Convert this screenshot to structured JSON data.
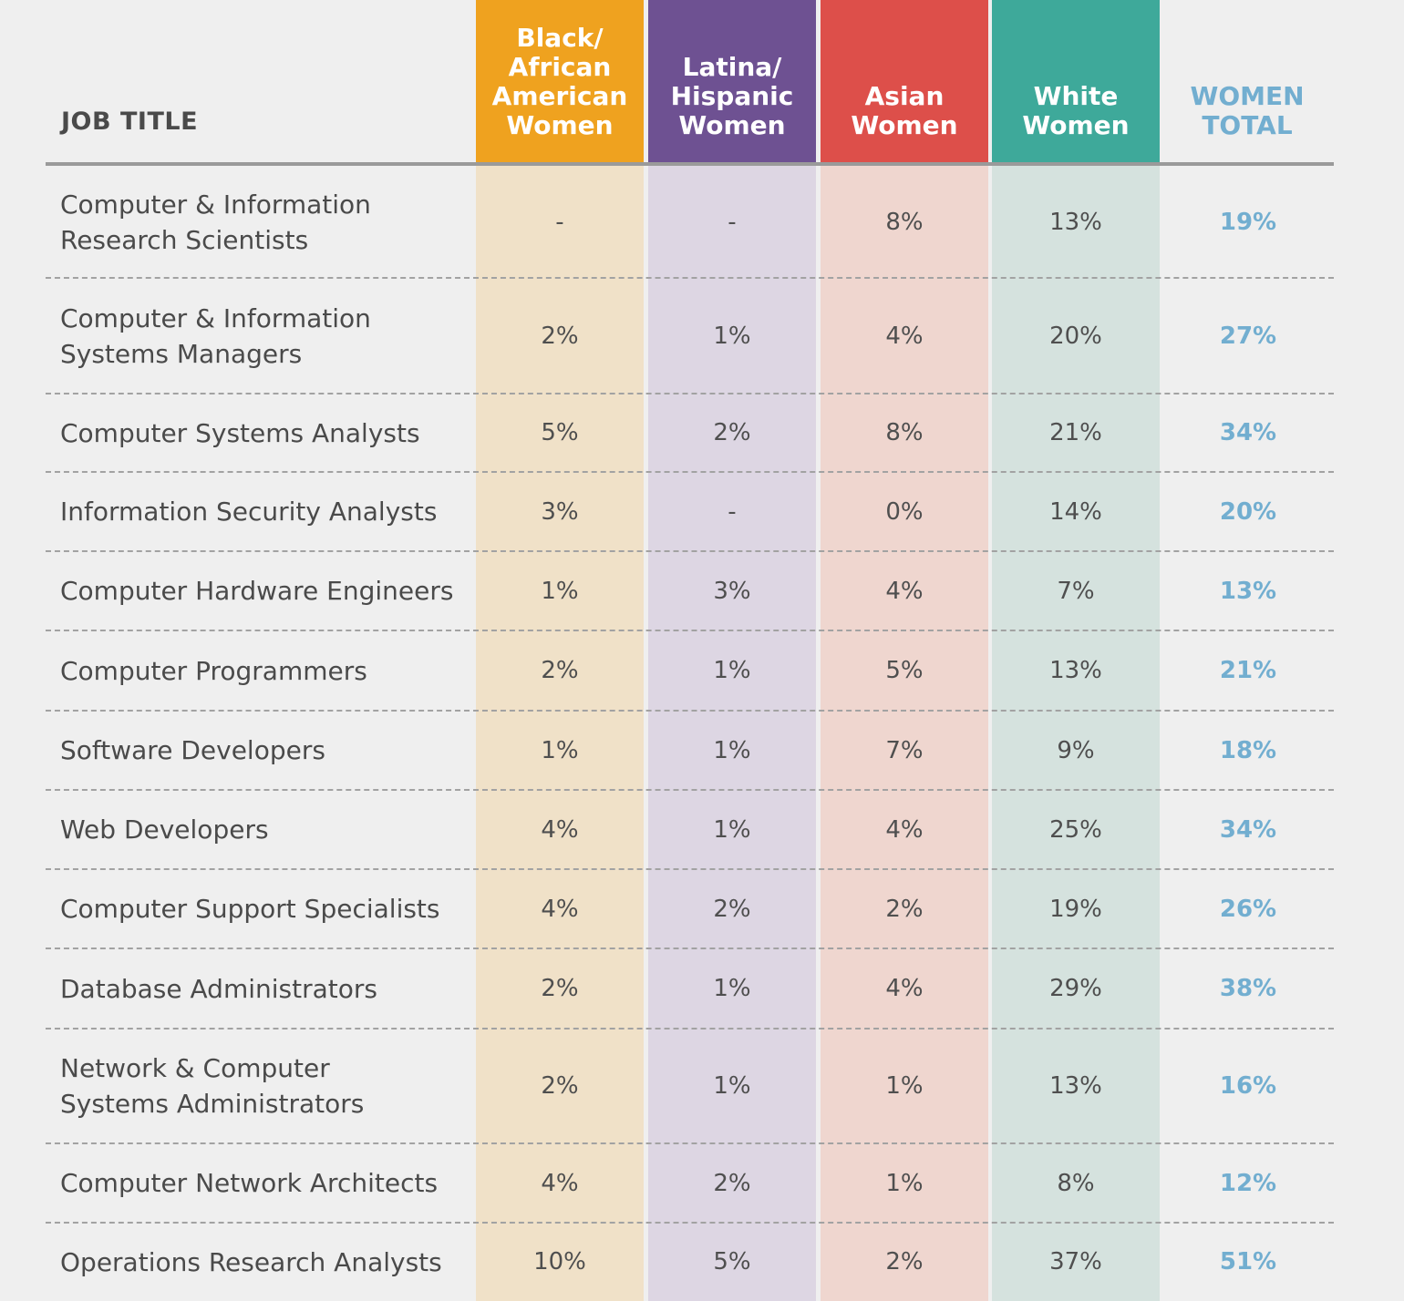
{
  "chart_data": {
    "type": "table",
    "header_label": "JOB TITLE",
    "columns": [
      {
        "key": "black",
        "lines": [
          "Black/",
          "African",
          "American",
          "Women"
        ],
        "color": "#efa21f",
        "tint": "#f0e1c8"
      },
      {
        "key": "latina",
        "lines": [
          "Latina/",
          "Hispanic",
          "Women"
        ],
        "color": "#6e5192",
        "tint": "#ddd6e3"
      },
      {
        "key": "asian",
        "lines": [
          "Asian",
          "Women"
        ],
        "color": "#dd4f4a",
        "tint": "#efd6cf"
      },
      {
        "key": "white",
        "lines": [
          "White",
          "Women"
        ],
        "color": "#3ea99a",
        "tint": "#d5e2de"
      }
    ],
    "total_column": {
      "lines": [
        "WOMEN",
        "TOTAL"
      ],
      "color": "#72aed0"
    },
    "rows": [
      {
        "title": [
          "Computer & Information",
          "Research Scientists"
        ],
        "values": [
          "-",
          "-",
          "8%",
          "13%"
        ],
        "total": "19%"
      },
      {
        "title": [
          "Computer & Information",
          "Systems Managers"
        ],
        "values": [
          "2%",
          "1%",
          "4%",
          "20%"
        ],
        "total": "27%"
      },
      {
        "title": [
          "Computer Systems Analysts"
        ],
        "values": [
          "5%",
          "2%",
          "8%",
          "21%"
        ],
        "total": "34%"
      },
      {
        "title": [
          "Information Security Analysts"
        ],
        "values": [
          "3%",
          "-",
          "0%",
          "14%"
        ],
        "total": "20%"
      },
      {
        "title": [
          "Computer Hardware Engineers"
        ],
        "values": [
          "1%",
          "3%",
          "4%",
          "7%"
        ],
        "total": "13%"
      },
      {
        "title": [
          "Computer Programmers"
        ],
        "values": [
          "2%",
          "1%",
          "5%",
          "13%"
        ],
        "total": "21%"
      },
      {
        "title": [
          "Software Developers"
        ],
        "values": [
          "1%",
          "1%",
          "7%",
          "9%"
        ],
        "total": "18%"
      },
      {
        "title": [
          "Web Developers"
        ],
        "values": [
          "4%",
          "1%",
          "4%",
          "25%"
        ],
        "total": "34%"
      },
      {
        "title": [
          "Computer Support Specialists"
        ],
        "values": [
          "4%",
          "2%",
          "2%",
          "19%"
        ],
        "total": "26%"
      },
      {
        "title": [
          "Database Administrators"
        ],
        "values": [
          "2%",
          "1%",
          "4%",
          "29%"
        ],
        "total": "38%"
      },
      {
        "title": [
          "Network & Computer",
          "Systems Administrators"
        ],
        "values": [
          "2%",
          "1%",
          "1%",
          "13%"
        ],
        "total": "16%"
      },
      {
        "title": [
          "Computer Network Architects"
        ],
        "values": [
          "4%",
          "2%",
          "1%",
          "8%"
        ],
        "total": "12%"
      },
      {
        "title": [
          "Operations Research Analysts"
        ],
        "values": [
          "10%",
          "5%",
          "2%",
          "37%"
        ],
        "total": "51%"
      }
    ]
  }
}
